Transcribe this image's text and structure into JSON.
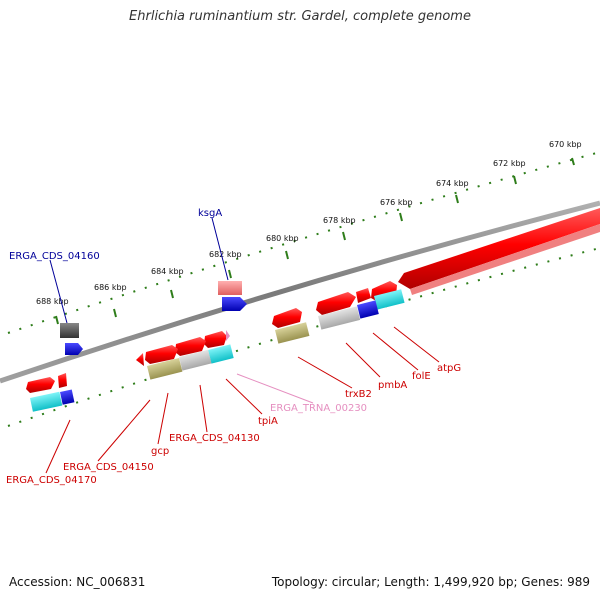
{
  "title": "Ehrlichia ruminantium str. Gardel, complete genome",
  "footer": {
    "accession": "Accession: NC_006831",
    "summary": "Topology: circular; Length: 1,499,920 bp; Genes: 989"
  },
  "colors": {
    "backbone": "#8a8a8a",
    "ruler": "#2e7d1a",
    "cds_forward": "#e00000",
    "cds_reverse": "#e00000",
    "gene_blue": "#0000cc",
    "trna": "#e58fc0",
    "label_red": "#cc0000",
    "label_blue": "#000099",
    "cog_cyan": "#18d8e0",
    "cog_olive": "#b7b06a",
    "cog_gray": "#bdbdbd",
    "cog_dark": "#555555"
  },
  "ticks": [
    "670 kbp",
    "672 kbp",
    "674 kbp",
    "676 kbp",
    "678 kbp",
    "680 kbp",
    "682 kbp",
    "684 kbp",
    "686 kbp",
    "688 kbp"
  ],
  "gene_labels": [
    {
      "text": "ERGA_CDS_04160",
      "color": "blue"
    },
    {
      "text": "ksgA",
      "color": "blue"
    },
    {
      "text": "atpG",
      "color": "red"
    },
    {
      "text": "folE",
      "color": "red"
    },
    {
      "text": "pmbA",
      "color": "red"
    },
    {
      "text": "trxB2",
      "color": "red"
    },
    {
      "text": "ERGA_TRNA_00230",
      "color": "pink"
    },
    {
      "text": "tpiA",
      "color": "red"
    },
    {
      "text": "ERGA_CDS_04130",
      "color": "red"
    },
    {
      "text": "gcp",
      "color": "red"
    },
    {
      "text": "ERGA_CDS_04150",
      "color": "red"
    },
    {
      "text": "ERGA_CDS_04170",
      "color": "red"
    }
  ]
}
